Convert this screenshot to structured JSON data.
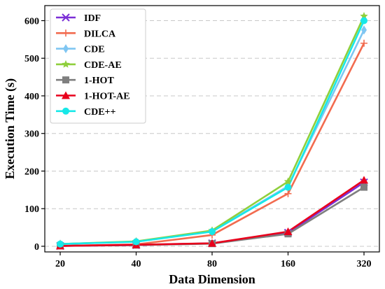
{
  "chart_data": {
    "type": "line",
    "xlabel": "Data Dimension",
    "ylabel": "Execution Time (s)",
    "categories": [
      "20",
      "40",
      "80",
      "160",
      "320"
    ],
    "ylim": [
      -15,
      640
    ],
    "yticks": [
      0,
      100,
      200,
      300,
      400,
      500,
      600
    ],
    "grid": "horizontal dashed",
    "legend_position": "top-left",
    "series": [
      {
        "name": "IDF",
        "color": "#7b2fd6",
        "marker": "x",
        "values": [
          1,
          3,
          8,
          36,
          170
        ]
      },
      {
        "name": "DILCA",
        "color": "#f26b4f",
        "marker": "plus",
        "values": [
          1,
          5,
          30,
          140,
          540
        ]
      },
      {
        "name": "CDE",
        "color": "#7fc6f2",
        "marker": "diamond",
        "values": [
          6,
          12,
          40,
          160,
          575
        ]
      },
      {
        "name": "CDE-AE",
        "color": "#8fcf3c",
        "marker": "star",
        "values": [
          6,
          13,
          42,
          172,
          612
        ]
      },
      {
        "name": "1-HOT",
        "color": "#7f7f7f",
        "marker": "square",
        "values": [
          1,
          3,
          7,
          33,
          157
        ]
      },
      {
        "name": "1-HOT-AE",
        "color": "#e8001c",
        "marker": "triangle",
        "values": [
          1,
          4,
          8,
          39,
          176
        ]
      },
      {
        "name": "CDE++",
        "color": "#17e8e8",
        "marker": "circle",
        "values": [
          6,
          12,
          39,
          157,
          600
        ]
      }
    ]
  }
}
